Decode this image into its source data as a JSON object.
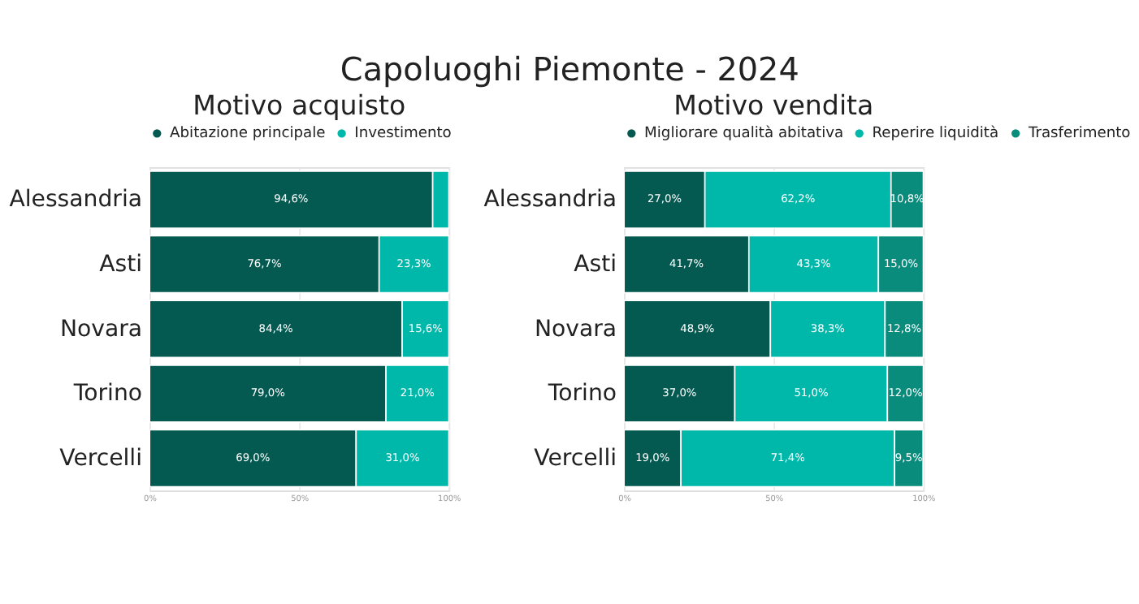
{
  "chart_data": [
    {
      "type": "bar",
      "orientation": "horizontal",
      "stacked": true,
      "title": "Motivo acquisto",
      "annotations": [
        "Capoluoghi Piemonte - 2024"
      ],
      "categories": [
        "Alessandria",
        "Asti",
        "Novara",
        "Torino",
        "Vercelli"
      ],
      "series": [
        {
          "name": "Abitazione principale",
          "color": "#045a50",
          "values": [
            94.6,
            76.7,
            84.4,
            79.0,
            69.0
          ],
          "value_labels": [
            "94,6%",
            "76,7%",
            "84,4%",
            "79,0%",
            "69,0%"
          ]
        },
        {
          "name": "Investimento",
          "color": "#00b8aa",
          "values": [
            5.4,
            23.3,
            15.6,
            21.0,
            31.0
          ],
          "value_labels": [
            null,
            "23,3%",
            "15,6%",
            "21,0%",
            "31,0%"
          ]
        }
      ],
      "xlim": [
        0,
        100
      ],
      "xticks": [
        {
          "value": 0,
          "label": "0%"
        },
        {
          "value": 50,
          "label": "50%"
        },
        {
          "value": 100,
          "label": "100%"
        }
      ],
      "grid": "x",
      "legend": "top"
    },
    {
      "type": "bar",
      "orientation": "horizontal",
      "stacked": true,
      "title": "Motivo vendita",
      "categories": [
        "Alessandria",
        "Asti",
        "Novara",
        "Torino",
        "Vercelli"
      ],
      "series": [
        {
          "name": "Migliorare qualità abitativa",
          "color": "#045a50",
          "values": [
            27.0,
            41.7,
            48.9,
            37.0,
            19.0
          ],
          "value_labels": [
            "27,0%",
            "41,7%",
            "48,9%",
            "37,0%",
            "19,0%"
          ]
        },
        {
          "name": "Reperire liquidità",
          "color": "#00b8aa",
          "values": [
            62.2,
            43.3,
            38.3,
            51.0,
            71.4
          ],
          "value_labels": [
            "62,2%",
            "43,3%",
            "38,3%",
            "51,0%",
            "71,4%"
          ]
        },
        {
          "name": "Trasferimento",
          "color": "#0a8c7d",
          "values": [
            10.8,
            15.0,
            12.8,
            12.0,
            9.5
          ],
          "value_labels": [
            "10,8%",
            "15,0%",
            "12,8%",
            "12,0%",
            "9,5%"
          ]
        }
      ],
      "xlim": [
        0,
        100
      ],
      "xticks": [
        {
          "value": 0,
          "label": "0%"
        },
        {
          "value": 50,
          "label": "50%"
        },
        {
          "value": 100,
          "label": "100%"
        }
      ],
      "grid": "x",
      "legend": "top"
    }
  ]
}
